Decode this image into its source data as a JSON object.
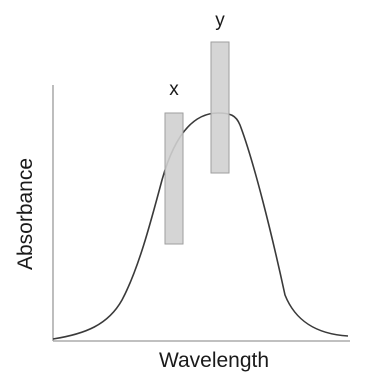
{
  "axes": {
    "x_label": "Wavelength",
    "y_label": "Absorbance"
  },
  "bands": [
    {
      "label": "x"
    },
    {
      "label": "y"
    }
  ],
  "colors": {
    "curve": "#3a3a3a",
    "axis": "#9a9a9a",
    "band_fill": "#d0d0d0",
    "band_stroke": "#9e9e9e",
    "text": "#1a1a1a"
  }
}
